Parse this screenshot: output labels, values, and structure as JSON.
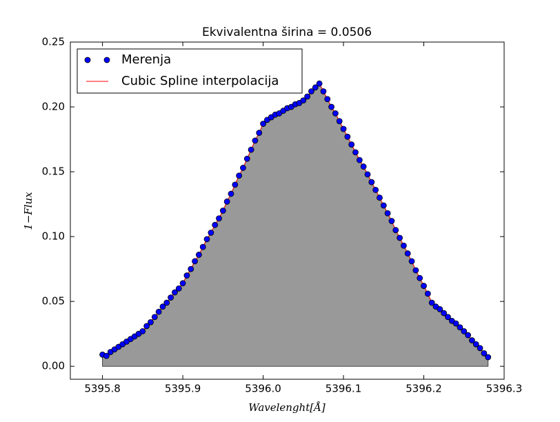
{
  "chart_data": {
    "type": "line",
    "title": "Ekvivalentna širina = 0.0506",
    "xlabel": "Wavelenght[Å]",
    "ylabel": "1−Flux",
    "x": [
      5395.8,
      5395.805,
      5395.81,
      5395.815,
      5395.82,
      5395.825,
      5395.83,
      5395.835,
      5395.84,
      5395.845,
      5395.85,
      5395.855,
      5395.86,
      5395.865,
      5395.87,
      5395.875,
      5395.88,
      5395.885,
      5395.89,
      5395.895,
      5395.9,
      5395.905,
      5395.91,
      5395.915,
      5395.92,
      5395.925,
      5395.93,
      5395.935,
      5395.94,
      5395.945,
      5395.95,
      5395.955,
      5395.96,
      5395.965,
      5395.97,
      5395.975,
      5395.98,
      5395.985,
      5395.99,
      5395.995,
      5396.0,
      5396.005,
      5396.01,
      5396.015,
      5396.02,
      5396.025,
      5396.03,
      5396.035,
      5396.04,
      5396.045,
      5396.05,
      5396.055,
      5396.06,
      5396.065,
      5396.07,
      5396.075,
      5396.08,
      5396.085,
      5396.09,
      5396.095,
      5396.1,
      5396.105,
      5396.11,
      5396.115,
      5396.12,
      5396.125,
      5396.13,
      5396.135,
      5396.14,
      5396.145,
      5396.15,
      5396.155,
      5396.16,
      5396.165,
      5396.17,
      5396.175,
      5396.18,
      5396.185,
      5396.19,
      5396.195,
      5396.2,
      5396.205,
      5396.21,
      5396.215,
      5396.22,
      5396.225,
      5396.23,
      5396.235,
      5396.24,
      5396.245,
      5396.25,
      5396.255,
      5396.26,
      5396.265,
      5396.27,
      5396.275,
      5396.28
    ],
    "series": [
      {
        "name": "Merenja",
        "color": "#0000ff",
        "style": "markers",
        "values": [
          0.009,
          0.008,
          0.011,
          0.013,
          0.015,
          0.017,
          0.019,
          0.021,
          0.023,
          0.025,
          0.027,
          0.031,
          0.034,
          0.038,
          0.042,
          0.046,
          0.049,
          0.053,
          0.057,
          0.06,
          0.064,
          0.07,
          0.075,
          0.081,
          0.086,
          0.092,
          0.098,
          0.103,
          0.109,
          0.114,
          0.12,
          0.127,
          0.133,
          0.14,
          0.147,
          0.153,
          0.16,
          0.167,
          0.174,
          0.18,
          0.187,
          0.19,
          0.192,
          0.194,
          0.195,
          0.197,
          0.199,
          0.2,
          0.202,
          0.203,
          0.205,
          0.208,
          0.212,
          0.215,
          0.218,
          0.212,
          0.206,
          0.2,
          0.195,
          0.189,
          0.183,
          0.177,
          0.171,
          0.165,
          0.159,
          0.154,
          0.148,
          0.142,
          0.136,
          0.13,
          0.124,
          0.118,
          0.112,
          0.105,
          0.099,
          0.093,
          0.087,
          0.081,
          0.074,
          0.068,
          0.062,
          0.056,
          0.049,
          0.046,
          0.044,
          0.041,
          0.038,
          0.035,
          0.033,
          0.03,
          0.027,
          0.024,
          0.02,
          0.017,
          0.014,
          0.01,
          0.007
        ]
      },
      {
        "name": "Cubic Spline interpolacija",
        "color": "#ff0000",
        "style": "line",
        "fill": "#999999",
        "values": [
          0.009,
          0.008,
          0.011,
          0.013,
          0.015,
          0.017,
          0.019,
          0.021,
          0.023,
          0.025,
          0.027,
          0.031,
          0.034,
          0.038,
          0.042,
          0.046,
          0.049,
          0.053,
          0.057,
          0.06,
          0.064,
          0.07,
          0.075,
          0.081,
          0.086,
          0.092,
          0.098,
          0.103,
          0.109,
          0.114,
          0.12,
          0.127,
          0.133,
          0.14,
          0.147,
          0.153,
          0.16,
          0.167,
          0.174,
          0.18,
          0.187,
          0.19,
          0.192,
          0.194,
          0.195,
          0.197,
          0.199,
          0.2,
          0.202,
          0.203,
          0.205,
          0.208,
          0.212,
          0.215,
          0.218,
          0.212,
          0.206,
          0.2,
          0.195,
          0.189,
          0.183,
          0.177,
          0.171,
          0.165,
          0.159,
          0.154,
          0.148,
          0.142,
          0.136,
          0.13,
          0.124,
          0.118,
          0.112,
          0.105,
          0.099,
          0.093,
          0.087,
          0.081,
          0.074,
          0.068,
          0.062,
          0.056,
          0.049,
          0.046,
          0.044,
          0.041,
          0.038,
          0.035,
          0.033,
          0.03,
          0.027,
          0.024,
          0.02,
          0.017,
          0.014,
          0.01,
          0.007
        ]
      }
    ],
    "xlim": [
      5395.76,
      5396.3
    ],
    "ylim": [
      -0.01,
      0.25
    ],
    "xticks": [
      5395.8,
      5395.9,
      {
        "value": 5396,
        "label": "5396.0"
      },
      5396.1,
      5396.2,
      5396.3
    ],
    "yticks": [
      {
        "value": 0,
        "label": "0.00"
      },
      {
        "value": 0.05,
        "label": "0.05"
      },
      {
        "value": 0.1,
        "label": "0.10"
      },
      {
        "value": 0.15,
        "label": "0.15"
      },
      {
        "value": 0.2,
        "label": "0.20"
      },
      {
        "value": 0.25,
        "label": "0.25"
      }
    ],
    "legend": "upper left"
  }
}
